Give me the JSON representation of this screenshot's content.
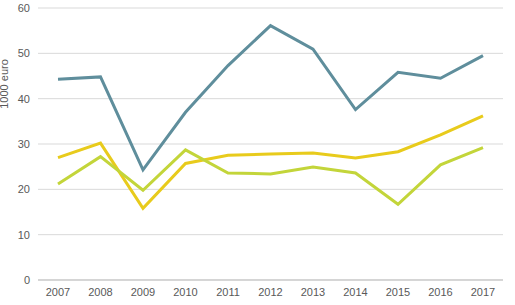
{
  "chart_data": {
    "type": "line",
    "y_label": "1000 euro",
    "categories": [
      "2007",
      "2008",
      "2009",
      "2010",
      "2011",
      "2012",
      "2013",
      "2014",
      "2015",
      "2016",
      "2017"
    ],
    "series": [
      {
        "color": "#5f8e9c",
        "values": [
          44.3,
          44.8,
          24.3,
          37.0,
          47.3,
          56.1,
          50.9,
          37.6,
          45.8,
          44.5,
          49.5
        ]
      },
      {
        "color": "#e8cb1c",
        "values": [
          27.0,
          30.2,
          15.8,
          25.7,
          27.5,
          27.8,
          28.0,
          26.9,
          28.3,
          32.0,
          36.2
        ]
      },
      {
        "color": "#c3d53a",
        "values": [
          21.2,
          27.2,
          19.8,
          28.7,
          23.6,
          23.4,
          24.9,
          23.6,
          16.7,
          25.4,
          29.2
        ]
      }
    ],
    "ylim": [
      0,
      60
    ],
    "yticks": [
      0,
      10,
      20,
      30,
      40,
      50,
      60
    ],
    "grid": true
  }
}
